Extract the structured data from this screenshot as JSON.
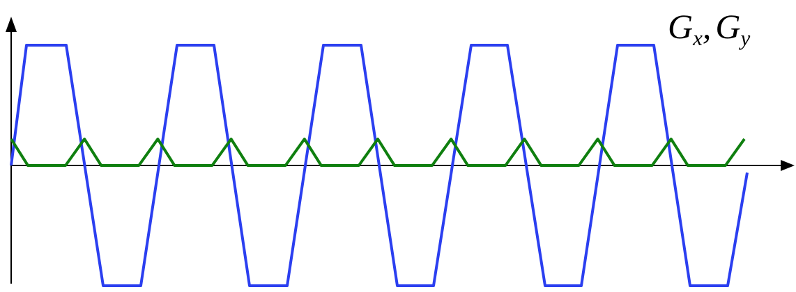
{
  "label": {
    "g": "G",
    "x": "x",
    "sep": ",",
    "y": "y"
  },
  "colors": {
    "axis": "#000000",
    "wave_gx": "#2b3ff0",
    "wave_gy": "#0f7f0f",
    "background": "#ffffff"
  },
  "chart_data": {
    "type": "line",
    "xlabel": "",
    "ylabel": "",
    "grid": false,
    "series": [
      {
        "key": "blue",
        "shape": "trapezoidal wave",
        "color": "#2b3ff0",
        "values": [
          0,
          1,
          1,
          -1,
          -1,
          1,
          1,
          -1,
          -1,
          1,
          1,
          -1,
          -1,
          1,
          1,
          -1,
          -1,
          1,
          1,
          -1,
          -1
        ]
      },
      {
        "key": "green",
        "shape": "triangular pulse train",
        "color": "#0f7f0f",
        "values": [
          0.22,
          0,
          0,
          0.22,
          0,
          0,
          0.22,
          0,
          0,
          0.22,
          0,
          0,
          0.22,
          0,
          0,
          0.22,
          0,
          0,
          0.22,
          0,
          0,
          0.22,
          0,
          0,
          0.22,
          0,
          0,
          0.22,
          0,
          0,
          0.22
        ]
      }
    ]
  }
}
